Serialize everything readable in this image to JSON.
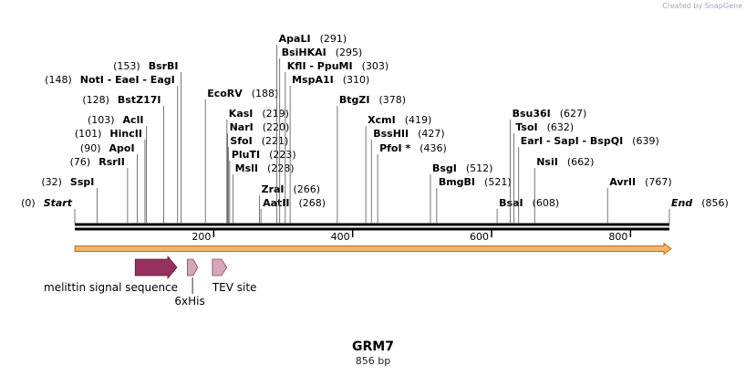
{
  "header": {
    "credit_prefix": "Created by",
    "credit_brand": "SnapGene"
  },
  "sequence": {
    "name": "GRM7",
    "length_label": "856 bp",
    "length": 856
  },
  "colors": {
    "backbone": "#000000",
    "strand_fill": "#f2b36b",
    "strand_edge": "#b0741f",
    "melittin": "#96305f",
    "tag_fill": "#d7a5b8",
    "tag_edge": "#8a4a63",
    "site_line": "#555555"
  },
  "ruler": {
    "ticks": [
      200,
      400,
      600,
      800
    ]
  },
  "sites": [
    {
      "name": "Start",
      "pos": 0,
      "label": "(0)",
      "italic": true
    },
    {
      "name": "SspI",
      "pos": 32,
      "label": "(32)"
    },
    {
      "name": "RsrII",
      "pos": 76,
      "label": "(76)"
    },
    {
      "name": "ApoI",
      "pos": 90,
      "label": "(90)"
    },
    {
      "name": "HincII",
      "pos": 101,
      "label": "(101)"
    },
    {
      "name": "AclI",
      "pos": 103,
      "label": "(103)"
    },
    {
      "name": "BstZ17I",
      "pos": 128,
      "label": "(128)"
    },
    {
      "name": "NotI - EaeI - EagI",
      "pos": 148,
      "label": "(148)"
    },
    {
      "name": "BsrBI",
      "pos": 153,
      "label": "(153)"
    },
    {
      "name": "EcoRV",
      "pos": 188,
      "label": "(188)"
    },
    {
      "name": "KasI",
      "pos": 219,
      "label": "(219)"
    },
    {
      "name": "NarI",
      "pos": 220,
      "label": "(220)"
    },
    {
      "name": "SfoI",
      "pos": 221,
      "label": "(221)"
    },
    {
      "name": "PluTI",
      "pos": 223,
      "label": "(223)"
    },
    {
      "name": "MslI",
      "pos": 228,
      "label": "(228)"
    },
    {
      "name": "ZraI",
      "pos": 266,
      "label": "(266)"
    },
    {
      "name": "AatII",
      "pos": 268,
      "label": "(268)"
    },
    {
      "name": "ApaLI",
      "pos": 291,
      "label": "(291)"
    },
    {
      "name": "BsiHKAI",
      "pos": 295,
      "label": "(295)"
    },
    {
      "name": "KflI - PpuMI",
      "pos": 303,
      "label": "(303)"
    },
    {
      "name": "MspA1I",
      "pos": 310,
      "label": "(310)"
    },
    {
      "name": "BtgZI",
      "pos": 378,
      "label": "(378)"
    },
    {
      "name": "XcmI",
      "pos": 419,
      "label": "(419)"
    },
    {
      "name": "BssHII",
      "pos": 427,
      "label": "(427)"
    },
    {
      "name": "PfoI *",
      "pos": 436,
      "label": "(436)"
    },
    {
      "name": "BsgI",
      "pos": 512,
      "label": "(512)"
    },
    {
      "name": "BmgBI",
      "pos": 521,
      "label": "(521)"
    },
    {
      "name": "BsaI",
      "pos": 608,
      "label": "(608)"
    },
    {
      "name": "Bsu36I",
      "pos": 627,
      "label": "(627)"
    },
    {
      "name": "TsoI",
      "pos": 632,
      "label": "(632)"
    },
    {
      "name": "EarI - SapI - BspQI",
      "pos": 639,
      "label": "(639)"
    },
    {
      "name": "NsiI",
      "pos": 662,
      "label": "(662)"
    },
    {
      "name": "AvrII",
      "pos": 767,
      "label": "(767)"
    },
    {
      "name": "End",
      "pos": 856,
      "label": "(856)",
      "italic": true
    }
  ],
  "features": [
    {
      "name": "melittin signal sequence",
      "start": 87,
      "end": 147
    },
    {
      "name": "6xHis",
      "start": 162,
      "end": 177
    },
    {
      "name": "TEV site",
      "start": 198,
      "end": 219
    }
  ]
}
